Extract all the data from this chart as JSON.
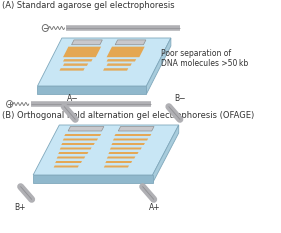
{
  "bg_color": "#ffffff",
  "title_a": "(A) Standard agarose gel electrophoresis",
  "title_b": "(B) Orthogonal field alternation gel electrophoresis (OFAGE)",
  "annotation_line1": "Poor separation of",
  "annotation_line2": "DNA molecules >50 kb",
  "gel_fill": "#c8e6f5",
  "gel_fill_grad": "#d8eff8",
  "gel_side": "#a8ccdc",
  "gel_bottom": "#90b8cc",
  "gel_edge": "#80a8bc",
  "band_orange": "#e8a040",
  "band_orange2": "#f0b050",
  "well_fill": "#c8c8cc",
  "well_edge": "#909090",
  "electrode_gray": "#b0b0b4",
  "electrode_dark": "#909094",
  "wire_color": "#707070",
  "text_color": "#333333",
  "label_fs": 5.5,
  "title_fs": 6.0,
  "annot_fs": 5.5
}
